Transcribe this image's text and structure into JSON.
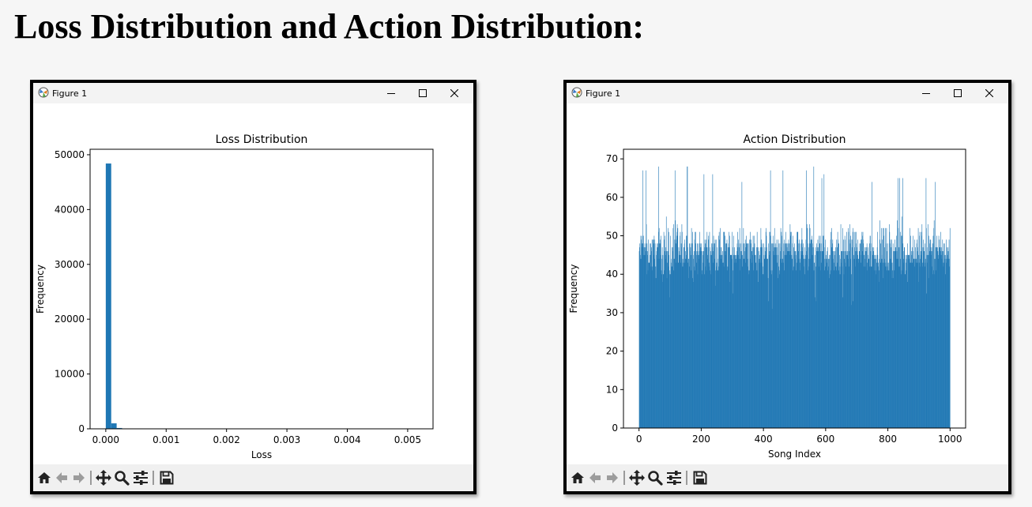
{
  "heading": "Loss Distribution and Action Distribution:",
  "windows": [
    {
      "title": "Figure 1",
      "chart_data": {
        "type": "bar",
        "title": "Loss Distribution",
        "xlabel": "Loss",
        "ylabel": "Frequency",
        "xlim": [
          -0.00026,
          0.00542
        ],
        "ylim": [
          0,
          51000
        ],
        "xticks": [
          "0.000",
          "0.001",
          "0.002",
          "0.003",
          "0.004",
          "0.005"
        ],
        "xtick_values": [
          0,
          0.001,
          0.002,
          0.003,
          0.004,
          0.005
        ],
        "yticks": [
          "0",
          "10000",
          "20000",
          "30000",
          "40000",
          "50000"
        ],
        "ytick_values": [
          0,
          10000,
          20000,
          30000,
          40000,
          50000
        ],
        "bin_width": 9e-05,
        "x": [
          0.0,
          9e-05,
          0.00018
        ],
        "values": [
          48400,
          1000,
          150
        ],
        "color": "#1f77b4"
      }
    },
    {
      "title": "Figure 1",
      "chart_data": {
        "type": "bar",
        "title": "Action Distribution",
        "xlabel": "Song Index",
        "ylabel": "Frequency",
        "xlim": [
          -50,
          1050
        ],
        "ylim": [
          0,
          72.5
        ],
        "xticks": [
          "0",
          "200",
          "400",
          "600",
          "800",
          "1000"
        ],
        "xtick_values": [
          0,
          200,
          400,
          600,
          800,
          1000
        ],
        "yticks": [
          "0",
          "10",
          "20",
          "30",
          "40",
          "50",
          "60",
          "70"
        ],
        "ytick_values": [
          0,
          10,
          20,
          30,
          40,
          50,
          60,
          70
        ],
        "bin_count": 1000,
        "bin_range": [
          0,
          1000
        ],
        "values_summary": {
          "min": 31,
          "max": 68,
          "typical_low": 40,
          "typical_high": 55
        },
        "color": "#1f77b4"
      }
    }
  ],
  "toolbar": [
    "home-icon",
    "back-arrow-icon",
    "forward-arrow-icon",
    "pan-icon",
    "zoom-icon",
    "configure-subplots-icon",
    "save-icon"
  ],
  "colors": {
    "bar": "#1f77b4",
    "window_border": "#000000",
    "toolbar_bg": "#f0f0f0"
  }
}
